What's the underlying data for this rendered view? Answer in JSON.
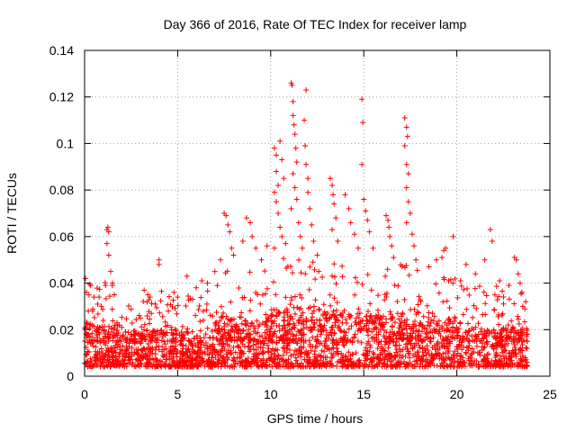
{
  "chart_data": {
    "type": "scatter",
    "title": "Day 366 of 2016, Rate Of TEC Index for receiver lamp",
    "xlabel": "GPS time / hours",
    "ylabel": "ROTI / TECUs",
    "xlim": [
      0,
      25
    ],
    "ylim": [
      0,
      0.14
    ],
    "xticks": [
      0,
      5,
      10,
      15,
      20,
      25
    ],
    "xtick_labels": [
      "0",
      "5",
      "10",
      "15",
      "20",
      "25"
    ],
    "yticks": [
      0,
      0.02,
      0.04,
      0.06,
      0.08,
      0.1,
      0.12,
      0.14
    ],
    "ytick_labels": [
      "0",
      "0.02",
      "0.04",
      "0.06",
      "0.08",
      "0.1",
      "0.12",
      "0.14"
    ],
    "grid": true,
    "marker": "+",
    "color": "#ff0000",
    "series": [
      {
        "name": "ROTI",
        "points": [
          [
            0.05,
            0.042
          ],
          [
            0.1,
            0.036
          ],
          [
            0.2,
            0.028
          ],
          [
            0.3,
            0.022
          ],
          [
            0.5,
            0.034
          ],
          [
            0.7,
            0.031
          ],
          [
            0.9,
            0.03
          ],
          [
            1.0,
            0.024
          ],
          [
            1.2,
            0.063
          ],
          [
            1.25,
            0.064
          ],
          [
            1.3,
            0.062
          ],
          [
            1.2,
            0.057
          ],
          [
            1.3,
            0.052
          ],
          [
            1.4,
            0.045
          ],
          [
            1.5,
            0.04
          ],
          [
            1.6,
            0.035
          ],
          [
            2.0,
            0.021
          ],
          [
            2.5,
            0.018
          ],
          [
            3.0,
            0.025
          ],
          [
            3.2,
            0.037
          ],
          [
            3.4,
            0.035
          ],
          [
            3.8,
            0.031
          ],
          [
            4.0,
            0.05
          ],
          [
            4.0,
            0.048
          ],
          [
            4.5,
            0.028
          ],
          [
            4.8,
            0.036
          ],
          [
            5.0,
            0.034
          ],
          [
            5.5,
            0.043
          ],
          [
            5.8,
            0.033
          ],
          [
            6.0,
            0.038
          ],
          [
            6.3,
            0.041
          ],
          [
            6.6,
            0.04
          ],
          [
            7.0,
            0.045
          ],
          [
            7.3,
            0.05
          ],
          [
            7.5,
            0.07
          ],
          [
            7.6,
            0.069
          ],
          [
            7.7,
            0.065
          ],
          [
            7.8,
            0.062
          ],
          [
            7.9,
            0.055
          ],
          [
            8.0,
            0.052
          ],
          [
            8.5,
            0.058
          ],
          [
            8.7,
            0.068
          ],
          [
            8.9,
            0.066
          ],
          [
            9.0,
            0.06
          ],
          [
            9.2,
            0.055
          ],
          [
            9.5,
            0.05
          ],
          [
            9.8,
            0.056
          ],
          [
            10.2,
            0.098
          ],
          [
            10.3,
            0.095
          ],
          [
            10.3,
            0.088
          ],
          [
            10.4,
            0.082
          ],
          [
            10.5,
            0.101
          ],
          [
            10.6,
            0.093
          ],
          [
            10.7,
            0.085
          ],
          [
            10.2,
            0.079
          ],
          [
            10.3,
            0.075
          ],
          [
            10.4,
            0.07
          ],
          [
            10.5,
            0.064
          ],
          [
            10.6,
            0.06
          ],
          [
            10.2,
            0.055
          ],
          [
            10.8,
            0.057
          ],
          [
            11.1,
            0.126
          ],
          [
            11.15,
            0.125
          ],
          [
            11.2,
            0.118
          ],
          [
            11.2,
            0.112
          ],
          [
            11.25,
            0.108
          ],
          [
            11.3,
            0.104
          ],
          [
            11.35,
            0.098
          ],
          [
            11.4,
            0.092
          ],
          [
            11.2,
            0.087
          ],
          [
            11.3,
            0.081
          ],
          [
            11.4,
            0.076
          ],
          [
            11.1,
            0.072
          ],
          [
            11.5,
            0.066
          ],
          [
            11.6,
            0.06
          ],
          [
            11.7,
            0.055
          ],
          [
            11.8,
            0.11
          ],
          [
            11.9,
            0.123
          ],
          [
            11.85,
            0.099
          ],
          [
            11.9,
            0.091
          ],
          [
            12.0,
            0.085
          ],
          [
            12.0,
            0.079
          ],
          [
            12.1,
            0.072
          ],
          [
            12.2,
            0.065
          ],
          [
            12.3,
            0.058
          ],
          [
            12.5,
            0.052
          ],
          [
            13.2,
            0.085
          ],
          [
            13.3,
            0.082
          ],
          [
            13.35,
            0.078
          ],
          [
            13.4,
            0.074
          ],
          [
            13.5,
            0.068
          ],
          [
            13.3,
            0.063
          ],
          [
            13.6,
            0.058
          ],
          [
            14.0,
            0.078
          ],
          [
            14.2,
            0.072
          ],
          [
            14.3,
            0.066
          ],
          [
            14.5,
            0.061
          ],
          [
            14.7,
            0.055
          ],
          [
            14.9,
            0.119
          ],
          [
            14.95,
            0.109
          ],
          [
            14.9,
            0.091
          ],
          [
            15.0,
            0.076
          ],
          [
            15.1,
            0.071
          ],
          [
            15.2,
            0.067
          ],
          [
            15.3,
            0.062
          ],
          [
            15.5,
            0.055
          ],
          [
            16.2,
            0.069
          ],
          [
            16.3,
            0.067
          ],
          [
            16.35,
            0.064
          ],
          [
            16.4,
            0.06
          ],
          [
            16.5,
            0.056
          ],
          [
            16.6,
            0.051
          ],
          [
            17.2,
            0.111
          ],
          [
            17.3,
            0.107
          ],
          [
            17.35,
            0.103
          ],
          [
            17.2,
            0.099
          ],
          [
            17.3,
            0.091
          ],
          [
            17.4,
            0.087
          ],
          [
            17.3,
            0.081
          ],
          [
            17.4,
            0.075
          ],
          [
            17.5,
            0.07
          ],
          [
            17.3,
            0.066
          ],
          [
            17.6,
            0.061
          ],
          [
            17.7,
            0.056
          ],
          [
            17.8,
            0.05
          ],
          [
            18.5,
            0.047
          ],
          [
            18.9,
            0.05
          ],
          [
            19.2,
            0.051
          ],
          [
            19.3,
            0.054
          ],
          [
            19.4,
            0.055
          ],
          [
            19.8,
            0.06
          ],
          [
            20.2,
            0.041
          ],
          [
            20.5,
            0.048
          ],
          [
            21.0,
            0.044
          ],
          [
            21.5,
            0.05
          ],
          [
            21.8,
            0.063
          ],
          [
            21.9,
            0.058
          ],
          [
            22.3,
            0.041
          ],
          [
            22.8,
            0.039
          ],
          [
            23.1,
            0.051
          ],
          [
            23.2,
            0.05
          ],
          [
            23.3,
            0.044
          ],
          [
            23.4,
            0.04
          ],
          [
            23.5,
            0.036
          ],
          [
            23.7,
            0.032
          ]
        ]
      }
    ]
  }
}
